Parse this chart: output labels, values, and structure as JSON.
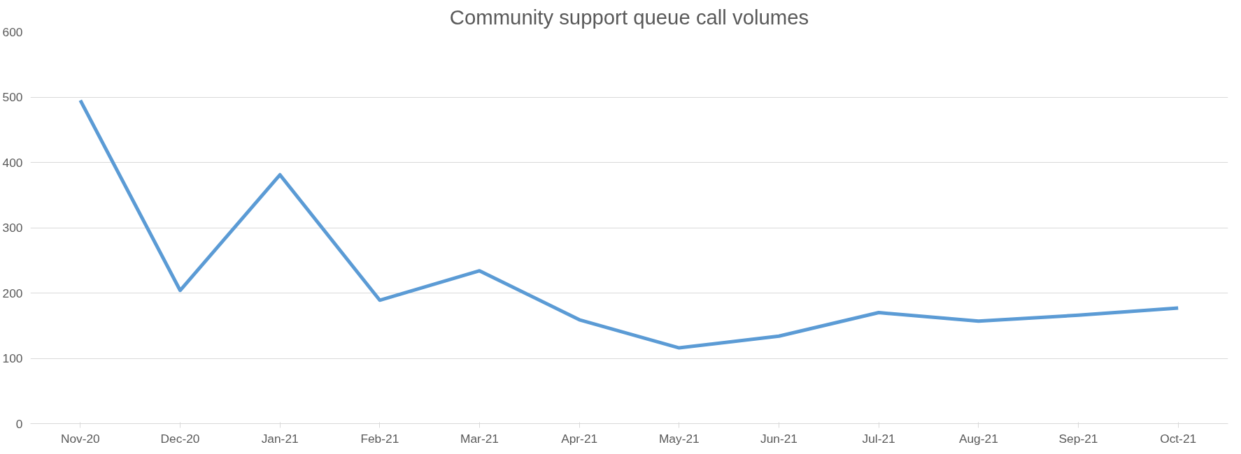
{
  "chart_data": {
    "type": "line",
    "title": "Community support queue call volumes",
    "categories": [
      "Nov-20",
      "Dec-20",
      "Jan-21",
      "Feb-21",
      "Mar-21",
      "Apr-21",
      "May-21",
      "Jun-21",
      "Jul-21",
      "Aug-21",
      "Sep-21",
      "Oct-21"
    ],
    "series": [
      {
        "color": "#5b9bd5",
        "values": [
          495,
          204,
          381,
          189,
          234,
          159,
          116,
          134,
          170,
          157,
          166,
          177
        ]
      }
    ],
    "ylim": [
      0,
      600
    ],
    "yticks": [
      0,
      100,
      200,
      300,
      400,
      500,
      600
    ],
    "grid": "y",
    "marker": "none",
    "line_style": "solid"
  }
}
